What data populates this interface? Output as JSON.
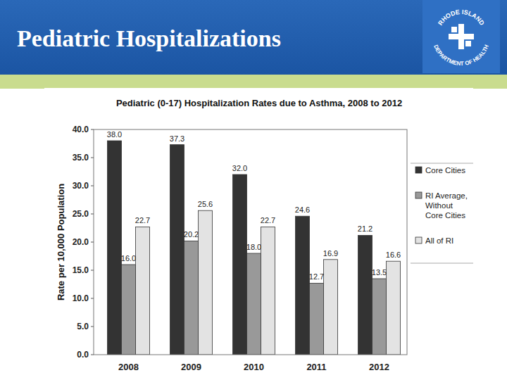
{
  "slide": {
    "title": "Pediatric Hospitalizations",
    "logo": [
      "RHODE ISLAND",
      "DEPARTMENT OF HEALTH"
    ]
  },
  "chart_data": {
    "type": "bar",
    "title": "Pediatric (0-17) Hospitalization Rates due to Asthma, 2008 to 2012",
    "y_label": "Rate per 10,000 Population",
    "categories": [
      "2008",
      "2009",
      "2010",
      "2011",
      "2012"
    ],
    "series": [
      {
        "name": "Core Cities",
        "color": "#333333",
        "values": [
          38.0,
          37.3,
          32.0,
          24.6,
          21.2
        ],
        "value_labels": [
          "38.0",
          "37.3",
          "32.0",
          "24.6",
          "21.2"
        ]
      },
      {
        "name": "RI Average, Without Core Cities",
        "color": "#999999",
        "values": [
          16.0,
          20.2,
          18.0,
          12.7,
          13.5
        ],
        "value_labels": [
          "16.0",
          "20.2",
          "18.0",
          "12.7",
          "13.5"
        ]
      },
      {
        "name": "All of RI",
        "color": "#e3e3e3",
        "values": [
          22.7,
          25.6,
          22.7,
          16.9,
          16.6
        ],
        "value_labels": [
          "22.7",
          "25.6",
          "22.7",
          "16.9",
          "16.6"
        ]
      }
    ],
    "ylim": [
      0,
      40
    ],
    "yticks": [
      {
        "value": 0,
        "label": "0.0"
      },
      {
        "value": 5,
        "label": "5.0"
      },
      {
        "value": 10,
        "label": "10.0"
      },
      {
        "value": 15,
        "label": "15.0"
      },
      {
        "value": 20,
        "label": "20.0"
      },
      {
        "value": 25,
        "label": "25.0"
      },
      {
        "value": 30,
        "label": "30.0"
      },
      {
        "value": 35,
        "label": "35.0"
      },
      {
        "value": 40,
        "label": "40.0"
      }
    ],
    "grid": false,
    "legend": "right",
    "data_labels": true
  }
}
